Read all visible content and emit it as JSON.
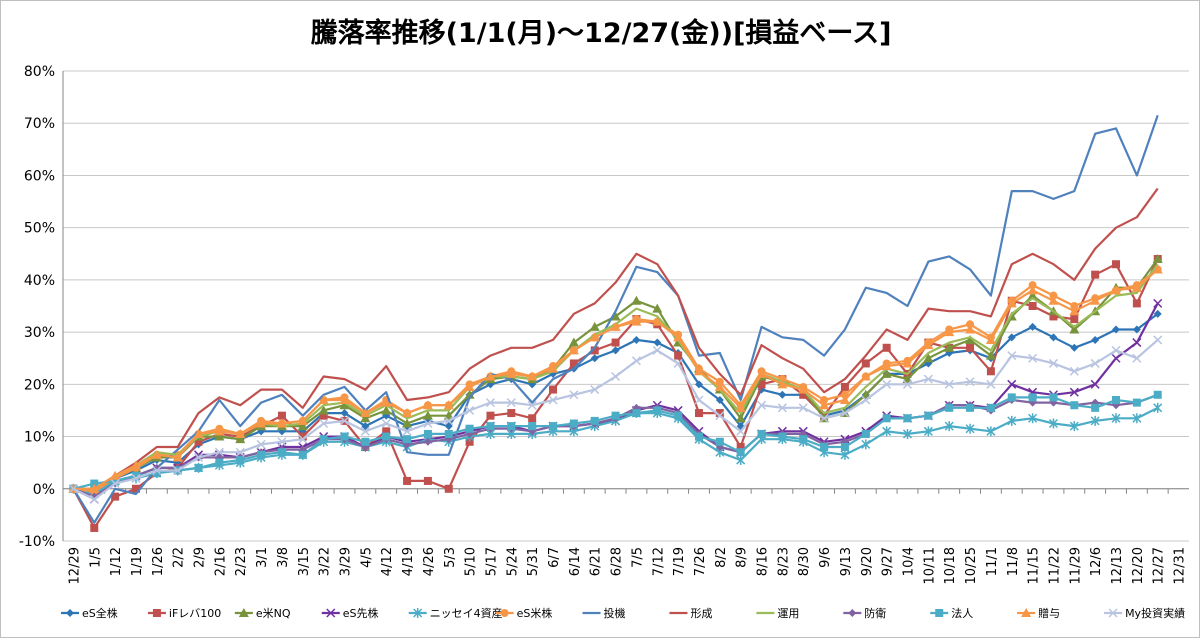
{
  "chart_data": {
    "type": "line",
    "title": "騰落率推移(1/1(月)～12/27(金))[損益ベース]",
    "xlabel": "",
    "ylabel": "",
    "ylim": [
      -10,
      80
    ],
    "y_ticks": [
      "-10%",
      "0%",
      "10%",
      "20%",
      "30%",
      "40%",
      "50%",
      "60%",
      "70%",
      "80%"
    ],
    "grid": "horizontal",
    "legend_position": "bottom",
    "x": [
      "12/29",
      "1/5",
      "1/12",
      "1/19",
      "1/26",
      "2/2",
      "2/9",
      "2/16",
      "2/23",
      "3/1",
      "3/8",
      "3/15",
      "3/22",
      "3/29",
      "4/5",
      "4/12",
      "4/19",
      "4/26",
      "5/3",
      "5/10",
      "5/17",
      "5/24",
      "5/31",
      "6/7",
      "6/14",
      "6/21",
      "6/28",
      "7/5",
      "7/12",
      "7/19",
      "7/26",
      "8/2",
      "8/9",
      "8/16",
      "8/23",
      "8/30",
      "9/6",
      "9/13",
      "9/20",
      "9/27",
      "10/4",
      "10/11",
      "10/18",
      "10/25",
      "11/1",
      "11/8",
      "11/15",
      "11/22",
      "11/29",
      "12/6",
      "12/13",
      "12/20",
      "12/27",
      "12/31"
    ],
    "series": [
      {
        "name": "eS全株",
        "color": "#2e75b6",
        "marker": "diamond",
        "values": [
          0,
          -1.5,
          2,
          3.5,
          5.5,
          5,
          8.5,
          10,
          9.5,
          11,
          11,
          11,
          14.5,
          14.5,
          12,
          14,
          12,
          13,
          12,
          18,
          20,
          21,
          20,
          22,
          23,
          25,
          26.5,
          28.5,
          28,
          26,
          20,
          17,
          12,
          19,
          18,
          18,
          14,
          15,
          18,
          22,
          22,
          24,
          26,
          26.5,
          25,
          29,
          31,
          29,
          27,
          28.5,
          30.5,
          30.5,
          33.5,
          null
        ]
      },
      {
        "name": "iFレバ100",
        "color": "#c0504d",
        "marker": "square",
        "values": [
          0,
          -7.5,
          -1.5,
          0,
          3,
          4,
          9,
          10.5,
          10,
          12,
          14,
          10,
          14,
          13,
          8,
          11,
          1.5,
          1.5,
          0,
          9,
          14,
          14.5,
          13.5,
          19,
          24,
          26.5,
          28,
          32.5,
          31.5,
          25.5,
          14.5,
          14.5,
          8,
          20,
          21,
          18,
          14,
          19.5,
          24,
          27,
          22,
          28,
          27,
          27,
          22.5,
          36,
          35,
          33,
          32.5,
          41,
          43,
          35.5,
          44,
          null
        ]
      },
      {
        "name": "e米NQ",
        "color": "#77933c",
        "marker": "triangle",
        "values": [
          0,
          -0.5,
          2,
          4,
          6,
          6,
          10,
          10,
          9.5,
          12,
          12,
          12,
          15,
          16,
          13.5,
          15,
          12.5,
          14,
          14,
          18,
          21,
          21.5,
          21,
          23,
          28,
          31,
          33,
          36,
          34.5,
          28,
          23,
          19,
          13.5,
          21.5,
          20.5,
          19,
          13.5,
          14.5,
          18,
          22,
          21,
          25,
          27,
          28.5,
          25.5,
          33,
          37,
          34,
          30.5,
          34,
          38.5,
          38.5,
          44,
          null
        ]
      },
      {
        "name": "eS先株",
        "color": "#7030a0",
        "marker": "x",
        "values": [
          0,
          -2,
          1.5,
          2.5,
          4,
          4,
          6.5,
          6.5,
          6,
          7,
          8,
          8,
          10,
          10,
          8,
          10,
          9,
          9.5,
          10,
          11,
          12,
          12,
          11,
          12,
          12,
          12.5,
          13,
          15,
          16,
          15,
          11,
          8,
          7,
          10.5,
          11,
          11,
          9,
          9.5,
          11,
          14,
          13.5,
          14,
          16,
          16,
          15.5,
          20,
          18.5,
          18,
          18.5,
          20,
          25,
          28,
          35.5,
          null
        ]
      },
      {
        "name": "ニッセイ4資産",
        "color": "#4bacc6",
        "marker": "star",
        "values": [
          0,
          -1,
          1.5,
          2,
          3,
          3.5,
          4,
          4.5,
          5,
          6,
          6.5,
          6.5,
          9,
          9,
          8,
          9,
          8,
          9.5,
          9,
          10,
          10.5,
          10.5,
          10.5,
          11,
          11,
          12,
          13,
          14.5,
          14.5,
          13.5,
          9.5,
          7,
          5.5,
          9.5,
          9.5,
          9,
          7,
          6.5,
          8.5,
          11,
          10.5,
          11,
          12,
          11.5,
          11,
          13,
          13.5,
          12.5,
          12,
          13,
          13.5,
          13.5,
          15.5,
          null
        ]
      },
      {
        "name": "eS米株",
        "color": "#f79646",
        "marker": "circle",
        "values": [
          0,
          -0.5,
          2,
          4,
          6.5,
          6.5,
          10.5,
          11.5,
          10.5,
          13,
          12.5,
          13,
          17,
          17.5,
          14.5,
          17,
          14.5,
          16,
          16,
          20,
          21.5,
          22.5,
          21.5,
          23.5,
          26.5,
          29,
          31,
          32.5,
          32,
          29.5,
          23,
          20.5,
          16,
          22.5,
          21,
          19.5,
          17,
          18,
          21.5,
          24,
          24.5,
          28,
          30.5,
          31.5,
          29,
          36,
          39,
          37,
          35,
          36.5,
          38,
          39,
          42,
          null
        ]
      },
      {
        "name": "投機",
        "color": "#4f81bd",
        "marker": "none",
        "values": [
          0,
          -6.5,
          0,
          -1,
          4,
          7.5,
          11,
          17,
          12,
          16.5,
          18,
          14,
          18,
          19.5,
          15,
          18.5,
          7,
          6.5,
          6.5,
          17.5,
          22,
          21,
          16.5,
          21,
          23,
          27,
          34,
          42.5,
          41.5,
          37,
          25.5,
          26,
          17,
          31,
          29,
          28.5,
          25.5,
          30.5,
          38.5,
          37.5,
          35,
          43.5,
          44.5,
          42,
          37,
          57,
          57,
          55.5,
          57,
          68,
          69,
          60,
          71.5,
          null
        ]
      },
      {
        "name": "形成",
        "color": "#c0504d",
        "marker": "none",
        "values": [
          0,
          0,
          2.5,
          5,
          8,
          8,
          14.5,
          17.5,
          16,
          19,
          19,
          15.5,
          21.5,
          21,
          19,
          23.5,
          17,
          17.5,
          18.5,
          23,
          25.5,
          27,
          27,
          28.5,
          33.5,
          35.5,
          39.5,
          45,
          43,
          37,
          27,
          22,
          18,
          27.5,
          25,
          23,
          18.5,
          21,
          25.5,
          30.5,
          28.5,
          34.5,
          34,
          34,
          33,
          43,
          45,
          43,
          40,
          46,
          50,
          52,
          57.5,
          null
        ]
      },
      {
        "name": "運用",
        "color": "#9bbb59",
        "marker": "none",
        "values": [
          0,
          0,
          2.5,
          4.5,
          7,
          6.5,
          10,
          11,
          10.5,
          12.5,
          12,
          12.5,
          16,
          16.5,
          14,
          16,
          13.5,
          15,
          15,
          19.5,
          21.5,
          21.5,
          21,
          22.5,
          26.5,
          29.5,
          31.5,
          34.5,
          33,
          28.5,
          22.5,
          19,
          14.5,
          22,
          20.5,
          19,
          14.5,
          15.5,
          19.5,
          23,
          22,
          26,
          28,
          29,
          26.5,
          33.5,
          36.5,
          34,
          31,
          34,
          37,
          37.5,
          43,
          null
        ]
      },
      {
        "name": "防衛",
        "color": "#8064a2",
        "marker": "diamond",
        "values": [
          0,
          -1.5,
          1,
          2.5,
          4,
          4,
          6,
          6,
          6,
          7,
          7.5,
          7.5,
          9.5,
          9.5,
          8,
          9.5,
          8.5,
          9,
          9.5,
          10.5,
          11.5,
          11.5,
          11,
          12,
          12,
          12.5,
          13.5,
          15.5,
          15.5,
          14.5,
          10.5,
          8,
          7,
          10.5,
          10.5,
          10.5,
          8.5,
          9,
          10.5,
          13.5,
          13.5,
          14,
          16,
          16,
          15,
          17,
          16.5,
          16.5,
          16,
          16.5,
          16,
          16.5,
          18,
          null
        ]
      },
      {
        "name": "法人",
        "color": "#4bacc6",
        "marker": "square",
        "values": [
          0,
          1,
          1.5,
          2.5,
          3,
          3.5,
          4,
          5,
          5.5,
          6.5,
          7,
          6.5,
          9.5,
          10,
          9,
          10,
          9.5,
          10.5,
          10.5,
          11.5,
          12,
          12,
          12,
          12,
          12.5,
          13,
          14,
          14.5,
          15,
          14,
          10,
          9,
          7,
          10.5,
          10,
          9.5,
          8,
          8,
          10.5,
          13.5,
          13.5,
          14,
          15.5,
          15.5,
          15.5,
          17.5,
          17.5,
          17.5,
          16,
          15.5,
          17,
          16.5,
          18,
          null
        ]
      },
      {
        "name": "贈与",
        "color": "#f79646",
        "marker": "triangle",
        "values": [
          0,
          0,
          2.5,
          4.5,
          6.5,
          6,
          10.5,
          11,
          10.5,
          12.5,
          12.5,
          13,
          17,
          17,
          14.5,
          16.5,
          14.5,
          16,
          16,
          19.5,
          21.5,
          22,
          21.5,
          23,
          26.5,
          29,
          31,
          32,
          32,
          29,
          22.5,
          19.5,
          15.5,
          22,
          20,
          19,
          16,
          17,
          21.5,
          23.5,
          24,
          27.5,
          30,
          30.5,
          28.5,
          35.5,
          38,
          36,
          34,
          36,
          38,
          38.5,
          42,
          null
        ]
      },
      {
        "name": "My投資実績",
        "color": "#b8c4e0",
        "marker": "x",
        "values": [
          0,
          -2,
          1,
          2,
          3.5,
          3.5,
          6,
          7,
          7,
          8.5,
          9,
          9.5,
          12.5,
          13,
          11,
          12.5,
          11,
          12.5,
          13,
          15,
          16.5,
          16.5,
          16,
          17,
          18,
          19,
          21.5,
          24.5,
          26.5,
          24,
          17,
          14,
          11,
          16,
          15.5,
          15.5,
          13.5,
          14.5,
          17,
          20,
          20,
          21,
          20,
          20.5,
          20,
          25.5,
          25,
          24,
          22.5,
          24,
          26.5,
          25,
          28.5,
          null
        ]
      }
    ]
  }
}
